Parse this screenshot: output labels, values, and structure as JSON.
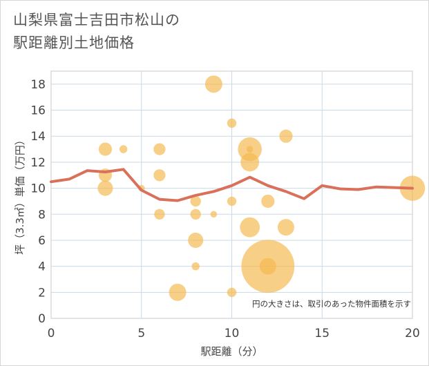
{
  "title": {
    "line1": "山梨県富士吉田市松山の",
    "line2": "駅距離別土地価格"
  },
  "chart_data": {
    "type": "scatter",
    "title": "山梨県富士吉田市松山の駅距離別土地価格",
    "xlabel": "駅距離（分）",
    "ylabel": "坪（3.3㎡）単価（万円）",
    "xlim": [
      0,
      20
    ],
    "ylim": [
      0,
      19
    ],
    "xticks": [
      0,
      5,
      10,
      15,
      20
    ],
    "yticks": [
      0,
      2,
      4,
      6,
      8,
      10,
      12,
      14,
      16,
      18
    ],
    "grid": true,
    "note": "円の大きさは、取引のあった物件面積を示す",
    "colors": {
      "bubble": "#f5b84e",
      "line": "#d9705a",
      "grid": "#c9d9e8",
      "plot_border": "#c8c8c8"
    },
    "bubbles": [
      {
        "x": 3,
        "y": 13,
        "size": 2
      },
      {
        "x": 3,
        "y": 11,
        "size": 2
      },
      {
        "x": 3,
        "y": 10,
        "size": 2.3
      },
      {
        "x": 4,
        "y": 13,
        "size": 1.2
      },
      {
        "x": 5,
        "y": 10,
        "size": 1
      },
      {
        "x": 6,
        "y": 13,
        "size": 1.8
      },
      {
        "x": 6,
        "y": 11,
        "size": 1.8
      },
      {
        "x": 6,
        "y": 8,
        "size": 1.6
      },
      {
        "x": 7,
        "y": 2,
        "size": 2.6
      },
      {
        "x": 8,
        "y": 9,
        "size": 1.6
      },
      {
        "x": 8,
        "y": 8,
        "size": 1.6
      },
      {
        "x": 8,
        "y": 6,
        "size": 2.3
      },
      {
        "x": 8,
        "y": 4,
        "size": 1.2
      },
      {
        "x": 9,
        "y": 18,
        "size": 2.6
      },
      {
        "x": 9,
        "y": 8,
        "size": 1
      },
      {
        "x": 10,
        "y": 15,
        "size": 1.4
      },
      {
        "x": 10,
        "y": 9,
        "size": 1.4
      },
      {
        "x": 10,
        "y": 2,
        "size": 1.4
      },
      {
        "x": 11,
        "y": 13,
        "size": 3.6
      },
      {
        "x": 11,
        "y": 13,
        "size": 1
      },
      {
        "x": 11,
        "y": 12,
        "size": 2.8
      },
      {
        "x": 11,
        "y": 7,
        "size": 3
      },
      {
        "x": 12,
        "y": 9,
        "size": 2
      },
      {
        "x": 12,
        "y": 4,
        "size": 8
      },
      {
        "x": 12,
        "y": 4,
        "size": 2.5
      },
      {
        "x": 13,
        "y": 14,
        "size": 2
      },
      {
        "x": 13,
        "y": 7,
        "size": 2.5
      },
      {
        "x": 20,
        "y": 10,
        "size": 3.8
      }
    ],
    "line": {
      "x": [
        0,
        1,
        2,
        3,
        4,
        5,
        6,
        7,
        8,
        9,
        10,
        11,
        12,
        13,
        14,
        15,
        16,
        17,
        18,
        19,
        20
      ],
      "y": [
        10.5,
        10.7,
        11.35,
        11.25,
        11.45,
        9.85,
        9.15,
        9.05,
        9.45,
        9.75,
        10.2,
        10.85,
        10.2,
        9.75,
        9.2,
        10.2,
        9.95,
        9.9,
        10.1,
        10.05,
        10
      ]
    }
  }
}
